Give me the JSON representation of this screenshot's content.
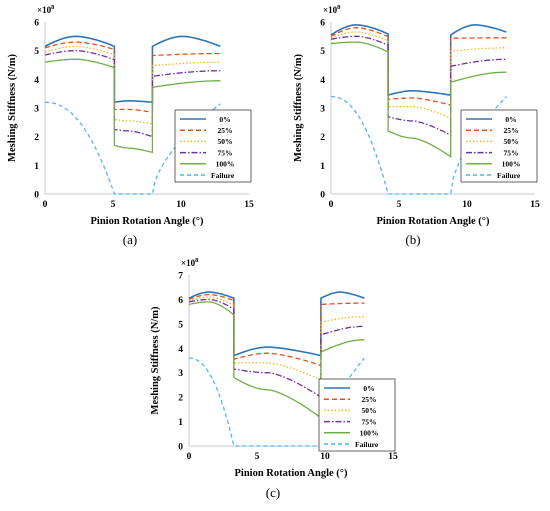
{
  "colors": {
    "0%": "#2e75b6",
    "25%": "#e0521f",
    "50%": "#f0b51c",
    "75%": "#7030a0",
    "100%": "#70ad47",
    "Failure": "#4fb6ee"
  },
  "chart_data": [
    {
      "type": "line",
      "panel_label": "(a)",
      "xlabel": "Pinion Rotation Angle (°)",
      "ylabel": "Meshing Stiffness (N/m)",
      "y_exponent": "×10",
      "y_exponent_power": "8",
      "xlim": [
        0,
        15
      ],
      "ylim": [
        0,
        6
      ],
      "xticks": [
        "0",
        "5",
        "10",
        "15"
      ],
      "yticks": [
        "0",
        "1",
        "2",
        "3",
        "4",
        "5",
        "6"
      ],
      "grid": false,
      "legend_position": "right",
      "double_mesh": [
        0,
        5.1
      ],
      "single_mesh": [
        5.1,
        7.9
      ],
      "double_mesh_2": [
        7.9,
        12.9
      ],
      "series": [
        {
          "name": "0%",
          "style": "solid",
          "double_start": 5.15,
          "double_peak": 5.5,
          "double_end": 5.15,
          "single_start": 3.2,
          "single_peak": 3.25,
          "single_end": 3.2
        },
        {
          "name": "25%",
          "style": "dash",
          "double_start": 5.1,
          "double_peak": 5.3,
          "double_end": 4.9,
          "single_start": 2.95,
          "single_peak": 2.95,
          "single_end": 2.85
        },
        {
          "name": "50%",
          "style": "dot",
          "double_start": 4.95,
          "double_peak": 5.15,
          "double_end": 4.6,
          "single_start": 2.6,
          "single_peak": 2.55,
          "single_end": 2.45
        },
        {
          "name": "75%",
          "style": "dashdot",
          "double_start": 4.85,
          "double_peak": 5.0,
          "double_end": 4.3,
          "single_start": 2.25,
          "single_peak": 2.2,
          "single_end": 2.0
        },
        {
          "name": "100%",
          "style": "solid",
          "double_start": 4.6,
          "double_peak": 4.7,
          "double_end": 3.95,
          "single_start": 1.7,
          "single_peak": 1.6,
          "single_end": 1.45
        },
        {
          "name": "Failure",
          "style": "longdash",
          "double_start": 3.2,
          "double_peak": 3.2,
          "double_end": 3.15,
          "single_start": 0.0,
          "single_peak": 0.0,
          "single_end": 0.0
        }
      ]
    },
    {
      "type": "line",
      "panel_label": "(b)",
      "xlabel": "Pinion Rotation Angle (°)",
      "ylabel": "Meshing Stiffness (N/m)",
      "y_exponent": "×10",
      "y_exponent_power": "8",
      "xlim": [
        0,
        15
      ],
      "ylim": [
        0,
        6
      ],
      "xticks": [
        "0",
        "5",
        "10",
        "15"
      ],
      "yticks": [
        "0",
        "1",
        "2",
        "3",
        "4",
        "5",
        "6"
      ],
      "grid": false,
      "legend_position": "right",
      "double_mesh": [
        0,
        4.2
      ],
      "single_mesh": [
        4.2,
        8.8
      ],
      "double_mesh_2": [
        8.8,
        12.9
      ],
      "series": [
        {
          "name": "0%",
          "style": "solid",
          "double_start": 5.55,
          "double_peak": 5.9,
          "double_end": 5.65,
          "single_start": 3.45,
          "single_peak": 3.6,
          "single_end": 3.45
        },
        {
          "name": "25%",
          "style": "dash",
          "double_start": 5.5,
          "double_peak": 5.8,
          "double_end": 5.45,
          "single_start": 3.3,
          "single_peak": 3.35,
          "single_end": 3.1
        },
        {
          "name": "50%",
          "style": "dot",
          "double_start": 5.45,
          "double_peak": 5.65,
          "double_end": 5.1,
          "single_start": 3.05,
          "single_peak": 3.05,
          "single_end": 2.65
        },
        {
          "name": "75%",
          "style": "dashdot",
          "double_start": 5.4,
          "double_peak": 5.5,
          "double_end": 4.7,
          "single_start": 2.7,
          "single_peak": 2.55,
          "single_end": 2.05
        },
        {
          "name": "100%",
          "style": "solid",
          "double_start": 5.25,
          "double_peak": 5.3,
          "double_end": 4.25,
          "single_start": 2.2,
          "single_peak": 1.95,
          "single_end": 1.3
        },
        {
          "name": "Failure",
          "style": "longdash",
          "double_start": 3.4,
          "double_peak": 3.4,
          "double_end": 3.4,
          "single_start": 0.0,
          "single_peak": 0.0,
          "single_end": 0.0
        }
      ]
    },
    {
      "type": "line",
      "panel_label": "(c)",
      "xlabel": "Pinion Rotation Angle (°)",
      "ylabel": "Meshing Stiffness (N/m)",
      "y_exponent": "×10",
      "y_exponent_power": "8",
      "xlim": [
        0,
        15
      ],
      "ylim": [
        0,
        7
      ],
      "xticks": [
        "0",
        "5",
        "10",
        "15"
      ],
      "yticks": [
        "0",
        "1",
        "2",
        "3",
        "4",
        "5",
        "6",
        "7"
      ],
      "grid": false,
      "legend_position": "right",
      "double_mesh": [
        0,
        3.3
      ],
      "single_mesh": [
        3.3,
        9.7
      ],
      "double_mesh_2": [
        9.7,
        12.9
      ],
      "series": [
        {
          "name": "0%",
          "style": "solid",
          "double_start": 6.05,
          "double_peak": 6.3,
          "double_end": 6.05,
          "single_start": 3.7,
          "single_peak": 4.05,
          "single_end": 3.7
        },
        {
          "name": "25%",
          "style": "dash",
          "double_start": 6.0,
          "double_peak": 6.2,
          "double_end": 5.85,
          "single_start": 3.55,
          "single_peak": 3.8,
          "single_end": 3.3
        },
        {
          "name": "50%",
          "style": "dot",
          "double_start": 5.95,
          "double_peak": 6.1,
          "double_end": 5.3,
          "single_start": 3.4,
          "single_peak": 3.4,
          "single_end": 2.7
        },
        {
          "name": "75%",
          "style": "dashdot",
          "double_start": 5.9,
          "double_peak": 6.0,
          "double_end": 4.9,
          "single_start": 3.15,
          "single_peak": 3.0,
          "single_end": 2.0
        },
        {
          "name": "100%",
          "style": "solid",
          "double_start": 5.8,
          "double_peak": 5.9,
          "double_end": 4.35,
          "single_start": 2.8,
          "single_peak": 2.3,
          "single_end": 1.15
        },
        {
          "name": "Failure",
          "style": "longdash",
          "double_start": 3.6,
          "double_peak": 3.6,
          "double_end": 3.6,
          "single_start": 0.0,
          "single_peak": 0.0,
          "single_end": 0.0
        }
      ]
    }
  ]
}
